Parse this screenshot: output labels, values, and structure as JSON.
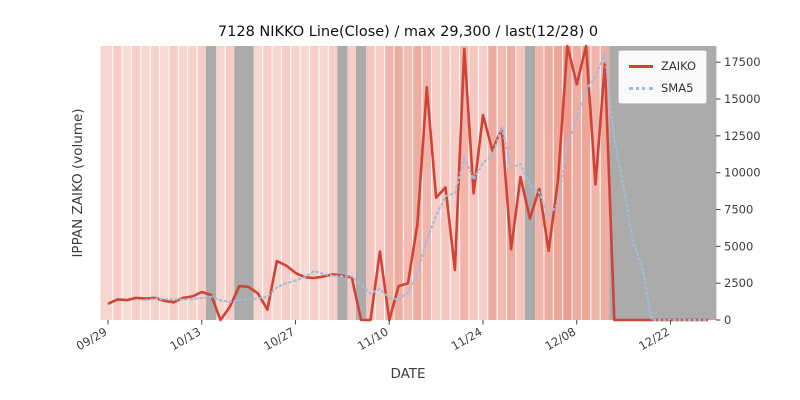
{
  "title": "7128 NIKKO Line(Close) / max 29,300 / last(12/28) 0",
  "x_axis": {
    "label": "DATE"
  },
  "y_axis": {
    "label": "IPPAN ZAIKO (volume)"
  },
  "legend_items": [
    {
      "label": "ZAIKO",
      "color": "#cf4436",
      "style": "solid"
    },
    {
      "label": "SMA5",
      "color": "#a3bcd9",
      "style": "dotted"
    }
  ],
  "chart_data": {
    "type": "line",
    "x_tick_labels": [
      "09/29",
      "10/13",
      "10/27",
      "11/10",
      "11/24",
      "12/08",
      "12/22"
    ],
    "x_tick_indices": [
      0,
      10,
      20,
      30,
      40,
      50,
      60
    ],
    "y_ticks": [
      0,
      2500,
      5000,
      7500,
      10000,
      12500,
      15000,
      17500
    ],
    "ylim": [
      0,
      18600
    ],
    "last_date": "12/28",
    "last_value": 0,
    "max_value": 29300,
    "band_colors": {
      "red": "#e05c44",
      "gray": "#ababab"
    },
    "bands": [
      0.25,
      0.3,
      0.22,
      0.3,
      0.25,
      0.28,
      0.22,
      0.3,
      0.25,
      0.28,
      0.3,
      "g",
      0.25,
      0.3,
      "g",
      "g",
      0.25,
      0.3,
      0.25,
      0.3,
      0.28,
      0.24,
      0.3,
      0.26,
      0.3,
      "g",
      0.3,
      "g",
      0.35,
      0.3,
      0.45,
      0.5,
      0.42,
      0.5,
      0.45,
      0.3,
      0.35,
      0.3,
      0.45,
      0.35,
      0.3,
      0.5,
      0.42,
      0.5,
      0.35,
      "g",
      0.45,
      0.5,
      0.55,
      0.6,
      0.5,
      0.55,
      0.45,
      0.5,
      "g",
      "g",
      "g",
      "g",
      "g",
      "g",
      "g",
      "g",
      "g",
      "g",
      "g"
    ],
    "series": [
      {
        "name": "ZAIKO",
        "color": "#cf4436",
        "style": "solid",
        "values": [
          1100,
          1400,
          1350,
          1500,
          1450,
          1500,
          1300,
          1200,
          1500,
          1600,
          1900,
          1700,
          0,
          900,
          2300,
          2250,
          1800,
          700,
          4000,
          3700,
          3200,
          2900,
          2850,
          2950,
          3100,
          3000,
          2900,
          0,
          0,
          4650,
          0,
          2300,
          2500,
          6500,
          15800,
          8300,
          9000,
          3400,
          18400,
          8600,
          13900,
          11500,
          13000,
          4800,
          9700,
          6900,
          8900,
          4700,
          9500,
          29300,
          16000,
          18600,
          9200,
          17400,
          0,
          0,
          0,
          0,
          0,
          0,
          0,
          0,
          0,
          0,
          0
        ]
      },
      {
        "name": "SMA5",
        "color": "#a3bcd9",
        "style": "dotted",
        "derived": "rolling_mean_window_5"
      }
    ]
  }
}
